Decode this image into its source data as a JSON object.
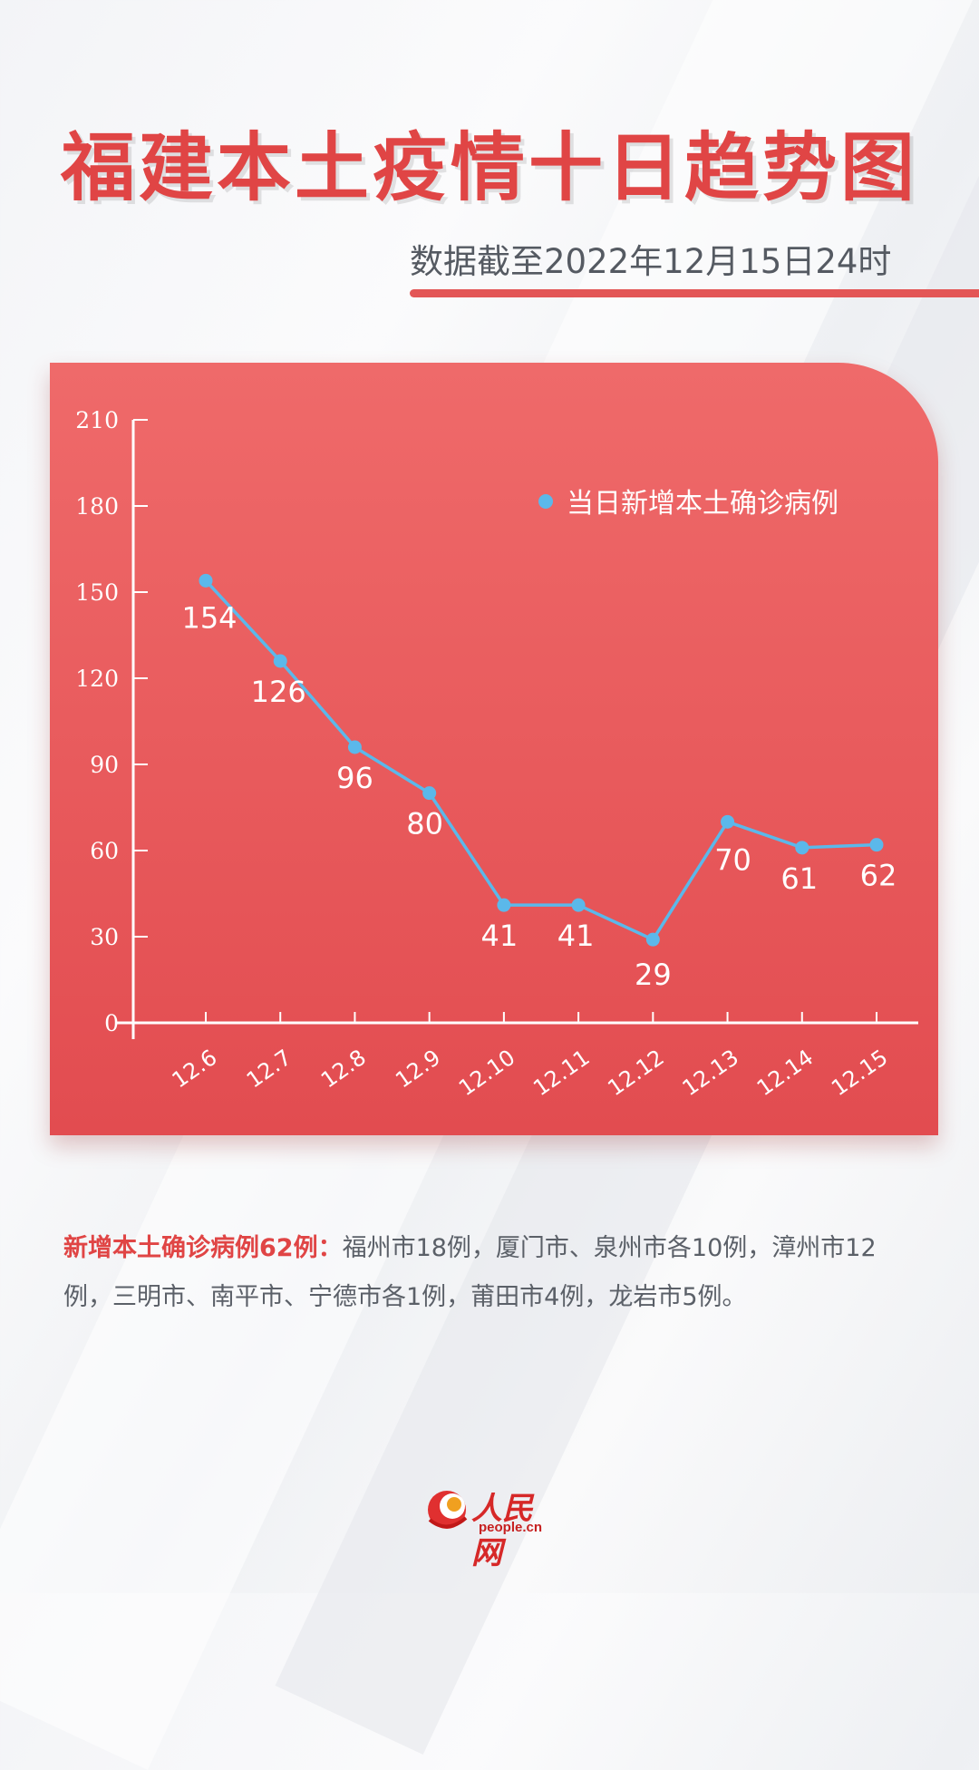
{
  "title": "福建本土疫情十日趋势图",
  "subtitle": "数据截至2022年12月15日24时",
  "note": {
    "label": "新增本土确诊病例62例：",
    "text": "福州市18例，厦门市、泉州市各10例，漳州市12例，三明市、南平市、宁德市各1例，莆田市4例，龙岩市5例。"
  },
  "logo": {
    "name": "人民网",
    "domain": "people.cn"
  },
  "colors": {
    "title": "#e04545",
    "card_top": "#ef6a6a",
    "card_bottom": "#e24c50",
    "series_line": "#5bb8ea",
    "axis": "#ffffff"
  },
  "chart_data": {
    "type": "line",
    "x": [
      "12.6",
      "12.7",
      "12.8",
      "12.9",
      "12.10",
      "12.11",
      "12.12",
      "12.13",
      "12.14",
      "12.15"
    ],
    "series": [
      {
        "name": "当日新增本土确诊病例",
        "values": [
          154,
          126,
          96,
          80,
          41,
          41,
          29,
          70,
          61,
          62
        ]
      }
    ],
    "data_labels": [
      "154",
      "126",
      "96",
      "80",
      "41",
      "41",
      "29",
      "70",
      "61",
      "62"
    ],
    "ylim": [
      0,
      210
    ],
    "yticks": [
      0,
      30,
      60,
      90,
      120,
      150,
      180,
      210
    ],
    "legend_position": "top-right",
    "grid": false
  }
}
